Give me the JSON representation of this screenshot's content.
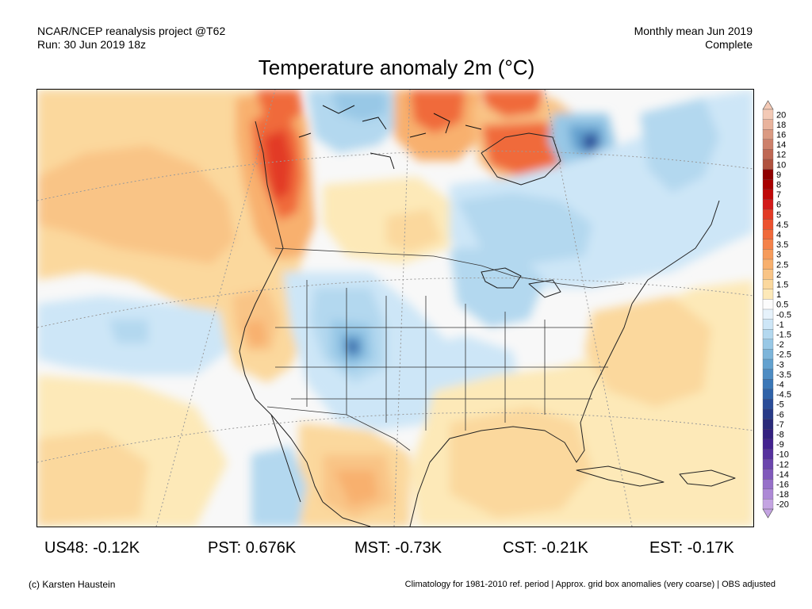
{
  "header": {
    "left_line1": "NCAR/NCEP reanalysis project @T62",
    "left_line2": "Run: 30 Jun 2019 18z",
    "right_line1": "Monthly mean Jun 2019",
    "right_line2": "Complete"
  },
  "title": "Temperature anomaly 2m (°C)",
  "colorbar": {
    "labels": [
      "20",
      "18",
      "16",
      "14",
      "12",
      "10",
      "9",
      "8",
      "7",
      "6",
      "5",
      "4.5",
      "4",
      "3.5",
      "3",
      "2.5",
      "2",
      "1.5",
      "1",
      "0.5",
      "-0.5",
      "-1",
      "-1.5",
      "-2",
      "-2.5",
      "-3",
      "-3.5",
      "-4",
      "-4.5",
      "-5",
      "-6",
      "-7",
      "-8",
      "-9",
      "-10",
      "-12",
      "-14",
      "-16",
      "-18",
      "-20"
    ],
    "colors": [
      "#f3c9b5",
      "#e9b39c",
      "#db9a82",
      "#cd806a",
      "#bf6853",
      "#b0523e",
      "#8f0000",
      "#a80000",
      "#c00808",
      "#d31a1a",
      "#e23a25",
      "#ec522f",
      "#f06a3b",
      "#f4824a",
      "#f69b5b",
      "#f8b06e",
      "#f9c486",
      "#fbd89d",
      "#fde9b8",
      "#fcfcfc",
      "#e6f2fb",
      "#cde6f7",
      "#b3d8ef",
      "#98c8e6",
      "#7db5da",
      "#63a1cf",
      "#4d8cc3",
      "#3a77b7",
      "#2f62a8",
      "#2a4c98",
      "#273a88",
      "#2a2a7a",
      "#332080",
      "#43228f",
      "#56319e",
      "#6b45ad",
      "#8059bb",
      "#9670c9",
      "#ad89d6",
      "#c4a4e2"
    ]
  },
  "stats": {
    "us48": "US48: -0.12K",
    "pst": "PST: 0.676K",
    "mst": "MST: -0.73K",
    "cst": "CST: -0.21K",
    "est": "EST: -0.17K"
  },
  "footer": {
    "left": "(c) Karsten Haustein",
    "right": "Climatology for 1981-2010 ref. period | Approx. grid box anomalies (very coarse) | OBS adjusted"
  },
  "map": {
    "colors": {
      "warm1": "#fde9b8",
      "warm2": "#fbd89d",
      "warm3": "#f9c486",
      "warm4": "#f8b06e",
      "warm5": "#f69b5b",
      "warm6": "#f06a3b",
      "warm7": "#e23a25",
      "cool1": "#e6f2fb",
      "cool2": "#cde6f7",
      "cool3": "#b3d8ef",
      "cool4": "#98c8e6",
      "cool5": "#63a1cf",
      "cool6": "#3a77b7",
      "cool7": "#2a4c98",
      "cool8": "#43228f"
    }
  }
}
